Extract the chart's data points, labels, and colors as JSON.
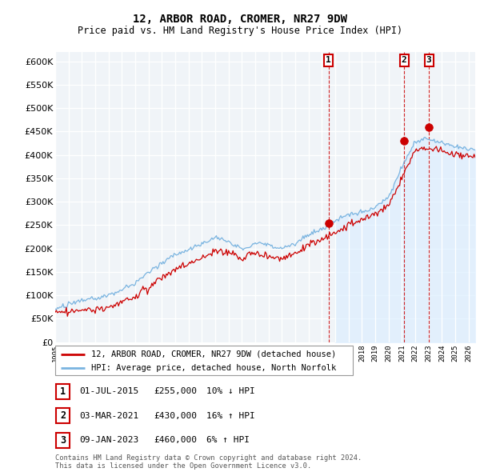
{
  "title": "12, ARBOR ROAD, CROMER, NR27 9DW",
  "subtitle": "Price paid vs. HM Land Registry's House Price Index (HPI)",
  "ylim": [
    0,
    620000
  ],
  "yticks": [
    0,
    50000,
    100000,
    150000,
    200000,
    250000,
    300000,
    350000,
    400000,
    450000,
    500000,
    550000,
    600000
  ],
  "ytick_labels": [
    "£0",
    "£50K",
    "£100K",
    "£150K",
    "£200K",
    "£250K",
    "£300K",
    "£350K",
    "£400K",
    "£450K",
    "£500K",
    "£550K",
    "£600K"
  ],
  "hpi_color": "#7ab4e0",
  "price_color": "#cc0000",
  "vline_color": "#cc0000",
  "bg_color": "#ddeeff",
  "plot_bg": "#f0f4f8",
  "legend_label_price": "12, ARBOR ROAD, CROMER, NR27 9DW (detached house)",
  "legend_label_hpi": "HPI: Average price, detached house, North Norfolk",
  "footer": "Contains HM Land Registry data © Crown copyright and database right 2024.\nThis data is licensed under the Open Government Licence v3.0.",
  "sales": [
    {
      "num": 1,
      "date_str": "01-JUL-2015",
      "date_dec": 2015.5,
      "price": 255000,
      "pct": "10%",
      "dir": "↓"
    },
    {
      "num": 2,
      "date_str": "03-MAR-2021",
      "date_dec": 2021.17,
      "price": 430000,
      "pct": "16%",
      "dir": "↑"
    },
    {
      "num": 3,
      "date_str": "09-JAN-2023",
      "date_dec": 2023.03,
      "price": 460000,
      "pct": "6%",
      "dir": "↑"
    }
  ],
  "xlim": [
    1995,
    2026.5
  ],
  "xticks": [
    1995,
    1996,
    1997,
    1998,
    1999,
    2000,
    2001,
    2002,
    2003,
    2004,
    2005,
    2006,
    2007,
    2008,
    2009,
    2010,
    2011,
    2012,
    2013,
    2014,
    2015,
    2016,
    2017,
    2018,
    2019,
    2020,
    2021,
    2022,
    2023,
    2024,
    2025,
    2026
  ],
  "shade_start": 2016.0
}
